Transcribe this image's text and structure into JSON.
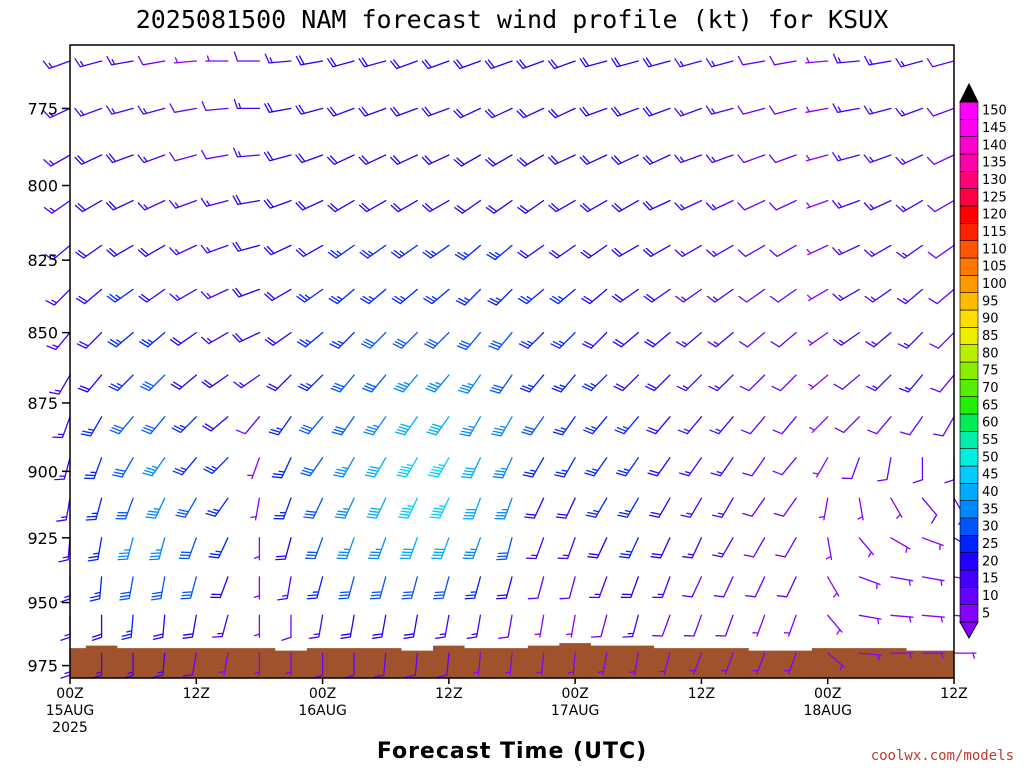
{
  "chart_data": {
    "type": "wind-barb-profile",
    "title": "2025081500 NAM forecast wind profile (kt) for KSUX",
    "xlabel": "Forecast Time (UTC)",
    "ylabel": "",
    "credit": "coolwx.com/models",
    "units": "kt",
    "y_axis": {
      "reversed": true,
      "range": [
        980,
        755
      ],
      "ticks": [
        775,
        800,
        825,
        850,
        875,
        900,
        925,
        950,
        975
      ]
    },
    "x_axis": {
      "range_hours": [
        0,
        84
      ],
      "ticks": [
        {
          "hour": 0,
          "time": "00Z",
          "date": "15AUG",
          "year": "2025"
        },
        {
          "hour": 12,
          "time": "12Z",
          "date": "",
          "year": ""
        },
        {
          "hour": 24,
          "time": "00Z",
          "date": "16AUG",
          "year": ""
        },
        {
          "hour": 36,
          "time": "12Z",
          "date": "",
          "year": ""
        },
        {
          "hour": 48,
          "time": "00Z",
          "date": "17AUG",
          "year": ""
        },
        {
          "hour": 60,
          "time": "12Z",
          "date": "",
          "year": ""
        },
        {
          "hour": 72,
          "time": "00Z",
          "date": "18AUG",
          "year": ""
        },
        {
          "hour": 84,
          "time": "12Z",
          "date": "",
          "year": ""
        }
      ]
    },
    "barb_times_hours": [
      0,
      3,
      6,
      9,
      12,
      15,
      18,
      21,
      24,
      27,
      30,
      33,
      36,
      39,
      42,
      45,
      48,
      51,
      54,
      57,
      60,
      63,
      66,
      69,
      72,
      75,
      78,
      81,
      84
    ],
    "barb_levels": [
      760,
      775,
      790,
      805,
      820,
      835,
      850,
      865,
      880,
      895,
      910,
      925,
      940,
      955,
      970
    ],
    "wind_speed_kt": [
      [
        15,
        15,
        15,
        15,
        15,
        15,
        15,
        15,
        15,
        15,
        15,
        15,
        15,
        15,
        15
      ],
      [
        15,
        15,
        20,
        20,
        20,
        20,
        20,
        20,
        25,
        25,
        25,
        25,
        25,
        20,
        15
      ],
      [
        15,
        15,
        20,
        20,
        20,
        25,
        25,
        25,
        30,
        30,
        30,
        35,
        30,
        25,
        15
      ],
      [
        10,
        15,
        15,
        15,
        20,
        20,
        25,
        30,
        30,
        35,
        35,
        35,
        30,
        20,
        15
      ],
      [
        5,
        10,
        10,
        15,
        15,
        15,
        20,
        20,
        25,
        25,
        30,
        30,
        30,
        20,
        10
      ],
      [
        5,
        10,
        10,
        15,
        15,
        15,
        15,
        20,
        20,
        25,
        25,
        25,
        20,
        15,
        5
      ],
      [
        10,
        15,
        15,
        20,
        20,
        20,
        20,
        15,
        10,
        5,
        5,
        5,
        5,
        5,
        5
      ],
      [
        15,
        20,
        20,
        20,
        20,
        20,
        20,
        20,
        25,
        25,
        25,
        20,
        15,
        10,
        5
      ],
      [
        20,
        20,
        20,
        20,
        20,
        25,
        25,
        25,
        30,
        30,
        30,
        30,
        25,
        15,
        10
      ],
      [
        20,
        20,
        20,
        20,
        25,
        25,
        25,
        30,
        30,
        35,
        35,
        35,
        30,
        20,
        10
      ],
      [
        20,
        20,
        20,
        20,
        25,
        25,
        30,
        30,
        35,
        40,
        40,
        35,
        30,
        20,
        10
      ],
      [
        20,
        20,
        20,
        20,
        25,
        25,
        30,
        35,
        40,
        45,
        45,
        40,
        30,
        20,
        10
      ],
      [
        20,
        20,
        20,
        20,
        25,
        25,
        30,
        35,
        40,
        45,
        45,
        40,
        30,
        15,
        10
      ],
      [
        20,
        20,
        20,
        20,
        25,
        25,
        30,
        35,
        35,
        40,
        40,
        35,
        25,
        15,
        5
      ],
      [
        20,
        20,
        20,
        20,
        25,
        25,
        30,
        30,
        35,
        35,
        35,
        30,
        20,
        10,
        5
      ],
      [
        20,
        20,
        20,
        20,
        20,
        25,
        25,
        25,
        30,
        25,
        20,
        15,
        10,
        5,
        5
      ],
      [
        20,
        20,
        20,
        20,
        20,
        25,
        25,
        25,
        25,
        25,
        20,
        15,
        10,
        5,
        5
      ],
      [
        20,
        20,
        20,
        20,
        20,
        20,
        20,
        25,
        25,
        25,
        25,
        20,
        15,
        10,
        5
      ],
      [
        20,
        20,
        20,
        20,
        20,
        20,
        20,
        20,
        25,
        25,
        25,
        25,
        20,
        15,
        5
      ],
      [
        20,
        20,
        20,
        20,
        20,
        20,
        20,
        20,
        20,
        20,
        20,
        20,
        15,
        10,
        5
      ],
      [
        15,
        15,
        15,
        15,
        15,
        15,
        15,
        15,
        15,
        15,
        15,
        15,
        10,
        10,
        5
      ],
      [
        15,
        15,
        15,
        15,
        15,
        15,
        15,
        15,
        15,
        15,
        15,
        15,
        10,
        10,
        5
      ],
      [
        10,
        10,
        10,
        10,
        10,
        10,
        10,
        10,
        10,
        10,
        10,
        10,
        10,
        5,
        5
      ],
      [
        10,
        10,
        10,
        10,
        10,
        10,
        10,
        10,
        10,
        10,
        10,
        10,
        10,
        5,
        5
      ],
      [
        5,
        5,
        5,
        5,
        5,
        5,
        5,
        5,
        5,
        5,
        5,
        5,
        5,
        5,
        5
      ],
      [
        15,
        15,
        15,
        15,
        15,
        15,
        15,
        10,
        10,
        10,
        5,
        5,
        5,
        5,
        5
      ],
      [
        15,
        15,
        15,
        15,
        15,
        15,
        15,
        15,
        10,
        10,
        5,
        5,
        5,
        5,
        5
      ],
      [
        15,
        15,
        15,
        15,
        15,
        15,
        15,
        15,
        10,
        10,
        10,
        5,
        5,
        5,
        5
      ],
      [
        10,
        10,
        10,
        10,
        10,
        10,
        10,
        10,
        10,
        10,
        10,
        10,
        5,
        5,
        5
      ]
    ],
    "wind_from_deg": [
      [
        250,
        245,
        240,
        235,
        230,
        225,
        220,
        210,
        200,
        195,
        190,
        185,
        180,
        180,
        180
      ],
      [
        255,
        250,
        245,
        240,
        235,
        230,
        225,
        220,
        210,
        200,
        195,
        190,
        185,
        180,
        180
      ],
      [
        260,
        255,
        250,
        245,
        240,
        235,
        230,
        225,
        220,
        210,
        200,
        195,
        190,
        185,
        180
      ],
      [
        260,
        255,
        250,
        245,
        240,
        235,
        230,
        225,
        220,
        215,
        205,
        195,
        190,
        185,
        185
      ],
      [
        265,
        260,
        255,
        250,
        245,
        240,
        235,
        230,
        225,
        220,
        210,
        200,
        195,
        190,
        190
      ],
      [
        270,
        265,
        260,
        255,
        250,
        245,
        240,
        235,
        230,
        225,
        215,
        205,
        200,
        195,
        190
      ],
      [
        270,
        270,
        265,
        260,
        255,
        250,
        245,
        235,
        220,
        200,
        190,
        180,
        180,
        180,
        180
      ],
      [
        265,
        260,
        255,
        250,
        245,
        240,
        235,
        225,
        215,
        205,
        200,
        195,
        190,
        180,
        180
      ],
      [
        260,
        255,
        250,
        245,
        240,
        235,
        230,
        225,
        220,
        215,
        205,
        200,
        195,
        190,
        180
      ],
      [
        255,
        250,
        245,
        240,
        235,
        230,
        225,
        220,
        215,
        210,
        205,
        200,
        195,
        190,
        180
      ],
      [
        255,
        250,
        245,
        240,
        235,
        230,
        225,
        220,
        215,
        210,
        205,
        200,
        195,
        190,
        185
      ],
      [
        250,
        250,
        245,
        240,
        235,
        230,
        225,
        220,
        215,
        210,
        205,
        200,
        195,
        190,
        185
      ],
      [
        250,
        250,
        245,
        240,
        235,
        230,
        225,
        220,
        215,
        210,
        205,
        200,
        195,
        190,
        185
      ],
      [
        250,
        245,
        240,
        235,
        230,
        225,
        220,
        215,
        210,
        205,
        200,
        200,
        195,
        190,
        185
      ],
      [
        250,
        245,
        240,
        235,
        230,
        225,
        220,
        215,
        210,
        205,
        200,
        195,
        195,
        190,
        185
      ],
      [
        250,
        245,
        240,
        235,
        235,
        230,
        225,
        220,
        215,
        210,
        205,
        200,
        195,
        190,
        185
      ],
      [
        250,
        245,
        245,
        240,
        235,
        230,
        225,
        220,
        215,
        210,
        205,
        200,
        195,
        190,
        185
      ],
      [
        255,
        250,
        245,
        240,
        235,
        230,
        225,
        225,
        220,
        215,
        210,
        205,
        200,
        195,
        190
      ],
      [
        255,
        250,
        245,
        240,
        240,
        235,
        230,
        225,
        220,
        215,
        210,
        205,
        200,
        195,
        190
      ],
      [
        255,
        250,
        245,
        245,
        240,
        235,
        230,
        225,
        220,
        215,
        210,
        205,
        200,
        200,
        195
      ],
      [
        255,
        250,
        250,
        245,
        240,
        235,
        230,
        225,
        220,
        215,
        210,
        205,
        205,
        200,
        200
      ],
      [
        255,
        255,
        250,
        245,
        240,
        235,
        230,
        225,
        220,
        215,
        210,
        210,
        205,
        200,
        200
      ],
      [
        260,
        255,
        250,
        245,
        240,
        235,
        230,
        225,
        220,
        215,
        215,
        210,
        205,
        200,
        200
      ],
      [
        260,
        255,
        250,
        245,
        240,
        235,
        230,
        225,
        220,
        220,
        215,
        210,
        205,
        200,
        200
      ],
      [
        265,
        260,
        255,
        250,
        245,
        240,
        235,
        230,
        225,
        210,
        190,
        170,
        150,
        140,
        130
      ],
      [
        265,
        260,
        255,
        250,
        245,
        240,
        235,
        230,
        225,
        200,
        170,
        140,
        110,
        100,
        95
      ],
      [
        260,
        255,
        250,
        245,
        240,
        235,
        230,
        225,
        220,
        190,
        150,
        120,
        100,
        95,
        90
      ],
      [
        255,
        250,
        245,
        240,
        235,
        230,
        225,
        220,
        215,
        180,
        140,
        110,
        100,
        95,
        90
      ],
      [
        255,
        250,
        245,
        240,
        235,
        230,
        225,
        220,
        210,
        180,
        150,
        120,
        100,
        95,
        90
      ]
    ],
    "terrain_pressure": [
      [
        0,
        968
      ],
      [
        3,
        967
      ],
      [
        6,
        968
      ],
      [
        9,
        968
      ],
      [
        12,
        968
      ],
      [
        15,
        968
      ],
      [
        18,
        968
      ],
      [
        21,
        969
      ],
      [
        24,
        968
      ],
      [
        27,
        968
      ],
      [
        30,
        968
      ],
      [
        33,
        969
      ],
      [
        36,
        967
      ],
      [
        39,
        968
      ],
      [
        42,
        968
      ],
      [
        45,
        967
      ],
      [
        48,
        966
      ],
      [
        51,
        967
      ],
      [
        54,
        967
      ],
      [
        57,
        968
      ],
      [
        60,
        968
      ],
      [
        63,
        968
      ],
      [
        66,
        969
      ],
      [
        69,
        969
      ],
      [
        72,
        968
      ],
      [
        75,
        968
      ],
      [
        78,
        968
      ],
      [
        81,
        969
      ],
      [
        84,
        969
      ]
    ],
    "colorbar": {
      "levels": [
        5,
        10,
        15,
        20,
        25,
        30,
        35,
        40,
        45,
        50,
        55,
        60,
        65,
        70,
        75,
        80,
        85,
        90,
        95,
        100,
        105,
        110,
        115,
        120,
        125,
        130,
        135,
        140,
        145,
        150
      ],
      "colors": [
        "#8800ff",
        "#6600ff",
        "#4400ff",
        "#2200ff",
        "#0022ff",
        "#0055ff",
        "#0088ff",
        "#00aaff",
        "#00ccff",
        "#00eedd",
        "#00eeaa",
        "#00ee55",
        "#22ee00",
        "#55ee00",
        "#88ee00",
        "#bbee00",
        "#eeee00",
        "#ffdd00",
        "#ffbb00",
        "#ff9900",
        "#ff7700",
        "#ff5500",
        "#ff2200",
        "#ff0000",
        "#ff0044",
        "#ff0077",
        "#ff00aa",
        "#ff00cc",
        "#ff00ee",
        "#ff00ff"
      ]
    }
  }
}
